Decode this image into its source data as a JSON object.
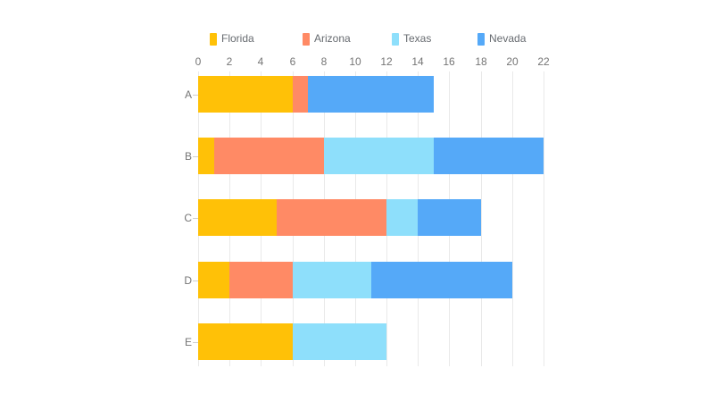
{
  "chart_data": {
    "type": "bar",
    "orientation": "horizontal",
    "stacked": true,
    "title": "",
    "xlabel": "",
    "ylabel": "",
    "categories": [
      "A",
      "B",
      "C",
      "D",
      "E"
    ],
    "series": [
      {
        "name": "Florida",
        "color": "#FFC107",
        "values": [
          6,
          1,
          5,
          2,
          6
        ]
      },
      {
        "name": "Arizona",
        "color": "#FF8A65",
        "values": [
          1,
          7,
          7,
          4,
          0
        ]
      },
      {
        "name": "Texas",
        "color": "#8EDFFB",
        "values": [
          0,
          7,
          2,
          5,
          6
        ]
      },
      {
        "name": "Nevada",
        "color": "#55A9F8",
        "values": [
          8,
          7,
          4,
          9,
          0
        ]
      }
    ],
    "totals": [
      15,
      22,
      18,
      20,
      12
    ],
    "xlim": [
      0,
      22
    ],
    "x_ticks": [
      0,
      2,
      4,
      6,
      8,
      10,
      12,
      14,
      16,
      18,
      20,
      22
    ],
    "x_axis_position": "top",
    "legend": {
      "position": "top",
      "entries": [
        "Florida",
        "Arizona",
        "Texas",
        "Nevada"
      ]
    },
    "grid": true,
    "colors": {
      "background": "#FFFFFF",
      "gridline": "#E9E9E9",
      "tick_text": "#757575",
      "legend_text": "#676B70"
    }
  }
}
